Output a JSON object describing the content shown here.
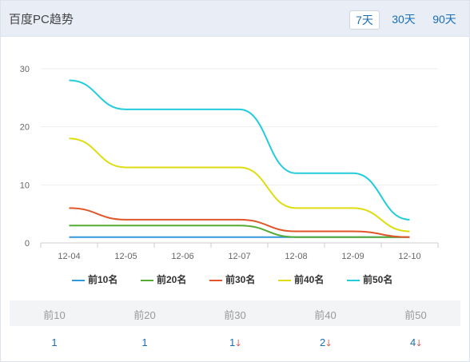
{
  "header": {
    "title": "百度PC趋势",
    "ranges": [
      {
        "label": "7天",
        "active": true
      },
      {
        "label": "30天",
        "active": false
      },
      {
        "label": "90天",
        "active": false
      }
    ]
  },
  "chart_data": {
    "type": "line",
    "categories": [
      "12-04",
      "12-05",
      "12-06",
      "12-07",
      "12-08",
      "12-09",
      "12-10"
    ],
    "ylim": [
      0,
      30
    ],
    "yticks": [
      0,
      10,
      20,
      30
    ],
    "grid": true,
    "legend_position": "bottom",
    "series": [
      {
        "name": "前10名",
        "color": "#3399dd",
        "values": [
          1,
          1,
          1,
          1,
          1,
          1,
          1
        ]
      },
      {
        "name": "前20名",
        "color": "#55aa33",
        "values": [
          3,
          3,
          3,
          3,
          1,
          1,
          1
        ]
      },
      {
        "name": "前30名",
        "color": "#e0562a",
        "values": [
          6,
          4,
          4,
          4,
          2,
          2,
          1
        ]
      },
      {
        "name": "前40名",
        "color": "#dddd11",
        "values": [
          18,
          13,
          13,
          13,
          6,
          6,
          2
        ]
      },
      {
        "name": "前50名",
        "color": "#22ccdd",
        "values": [
          28,
          23,
          23,
          23,
          12,
          12,
          4
        ]
      }
    ]
  },
  "summary": {
    "columns": [
      "前10",
      "前20",
      "前30",
      "前40",
      "前50"
    ],
    "values": [
      {
        "value": "1",
        "down": false
      },
      {
        "value": "1",
        "down": false
      },
      {
        "value": "1",
        "down": true
      },
      {
        "value": "2",
        "down": true
      },
      {
        "value": "4",
        "down": true
      }
    ],
    "down_arrow": "🡓"
  }
}
